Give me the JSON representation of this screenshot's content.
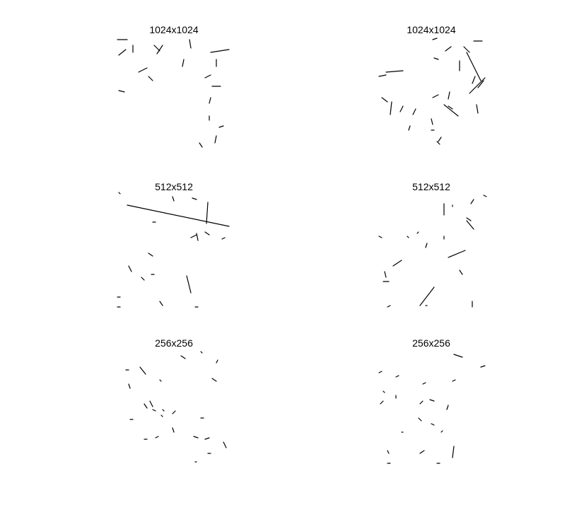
{
  "figure": {
    "panels": [
      {
        "title": "1024x1024"
      },
      {
        "title": "1024x1024"
      },
      {
        "title": "512x512"
      },
      {
        "title": "512x512"
      },
      {
        "title": "256x256"
      },
      {
        "title": "256x256"
      }
    ]
  }
}
